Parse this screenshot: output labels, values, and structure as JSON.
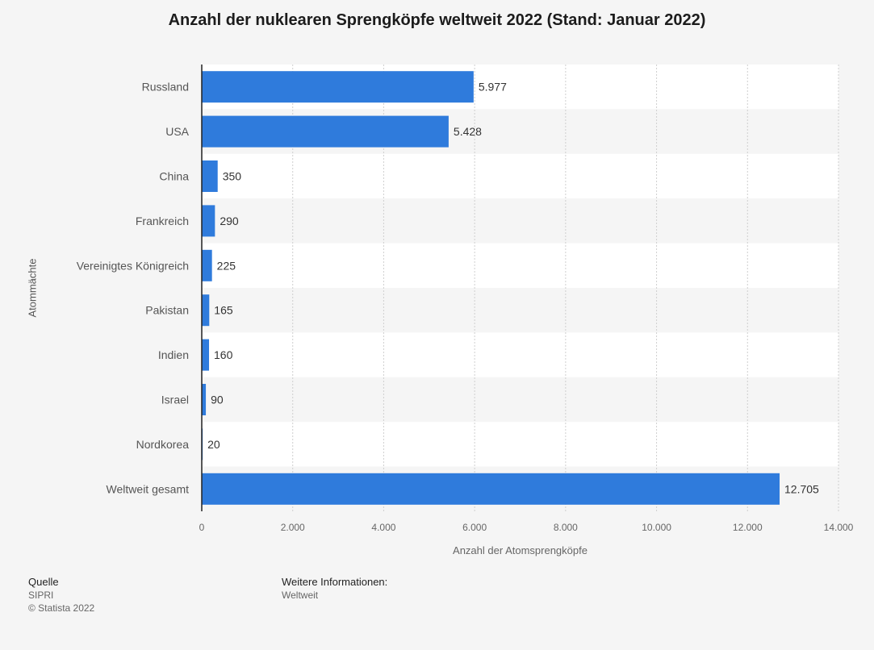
{
  "chart_data": {
    "type": "bar",
    "orientation": "horizontal",
    "title": "Anzahl der nuklearen Sprengköpfe weltweit 2022 (Stand: Januar 2022)",
    "xlabel": "Anzahl der Atomsprengköpfe",
    "ylabel": "Atommächte",
    "categories": [
      "Russland",
      "USA",
      "China",
      "Frankreich",
      "Vereinigtes Königreich",
      "Pakistan",
      "Indien",
      "Israel",
      "Nordkorea",
      "Weltweit gesamt"
    ],
    "values": [
      5977,
      5428,
      350,
      290,
      225,
      165,
      160,
      90,
      20,
      12705
    ],
    "value_labels": [
      "5.977",
      "5.428",
      "350",
      "290",
      "225",
      "165",
      "160",
      "90",
      "20",
      "12.705"
    ],
    "xlim": [
      0,
      14000
    ],
    "xticks": [
      0,
      2000,
      4000,
      6000,
      8000,
      10000,
      12000,
      14000
    ],
    "xtick_labels": [
      "0",
      "2.000",
      "4.000",
      "6.000",
      "8.000",
      "10.000",
      "12.000",
      "14.000"
    ],
    "grid": true,
    "bar_color": "#2f7bdc"
  },
  "footer": {
    "source_heading": "Quelle",
    "source": "SIPRI",
    "copyright": "© Statista 2022",
    "info_heading": "Weitere Informationen:",
    "info": "Weltweit"
  }
}
